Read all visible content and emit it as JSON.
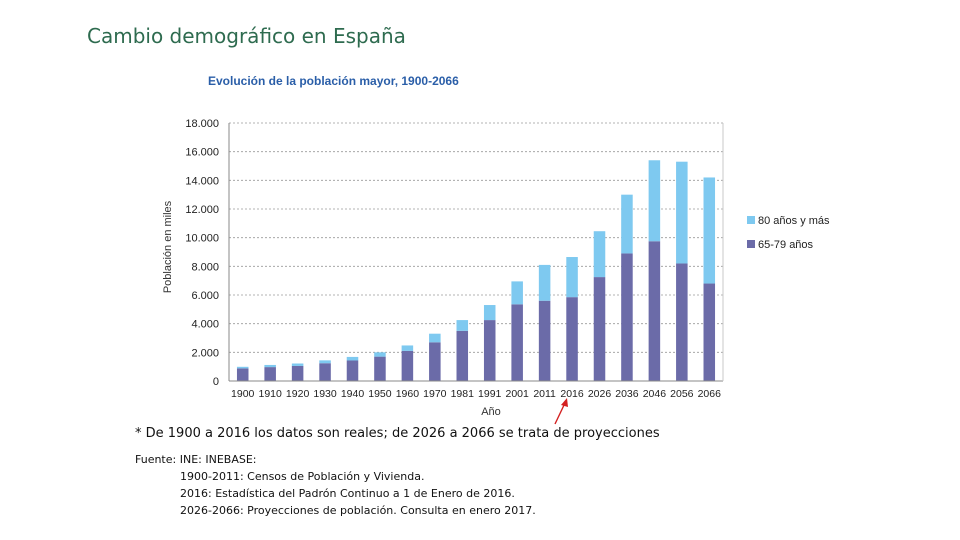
{
  "slide": {
    "title": "Cambio demográfico en España"
  },
  "chart_data": {
    "type": "bar",
    "stacked": true,
    "title": "Evolución de la población mayor, 1900-2066",
    "xlabel": "Año",
    "ylabel": "Población en miles",
    "ylim": [
      0,
      18000
    ],
    "yticks": [
      0,
      2000,
      4000,
      6000,
      8000,
      10000,
      12000,
      14000,
      16000,
      18000
    ],
    "ytick_labels": [
      "0",
      "2.000",
      "4.000",
      "6.000",
      "8.000",
      "10.000",
      "12.000",
      "14.000",
      "16.000",
      "18.000"
    ],
    "categories": [
      "1900",
      "1910",
      "1920",
      "1930",
      "1940",
      "1950",
      "1960",
      "1970",
      "1981",
      "1991",
      "2001",
      "2011",
      "2016",
      "2026",
      "2036",
      "2046",
      "2056",
      "2066"
    ],
    "series": [
      {
        "name": "65-79 años",
        "color": "#6b6ba8",
        "values": [
          880,
          970,
          1050,
          1240,
          1430,
          1700,
          2100,
          2700,
          3500,
          4250,
          5350,
          5600,
          5850,
          7250,
          8900,
          9750,
          8200,
          6800
        ]
      },
      {
        "name": "80 años y más",
        "color": "#7ec9f0",
        "values": [
          110,
          150,
          170,
          200,
          250,
          300,
          380,
          600,
          750,
          1050,
          1600,
          2500,
          2800,
          3200,
          4100,
          5650,
          7100,
          7400
        ]
      }
    ],
    "legend_order": [
      "80 años y más",
      "65-79 años"
    ],
    "legend_position": "right",
    "grid": true,
    "annotation": "arrow pointing to 2016 (last real data year)"
  },
  "notes": {
    "footnote": "* De 1900 a 2016 los datos son reales; de 2026 a 2066 se trata de proyecciones",
    "source_label": "Fuente: INE: INEBASE:",
    "source_lines": [
      "1900-2011: Censos de Población y Vivienda.",
      "2016: Estadística del Padrón Continuo a 1 de Enero de 2016.",
      "2026-2066: Proyecciones de población. Consulta en enero 2017."
    ]
  }
}
